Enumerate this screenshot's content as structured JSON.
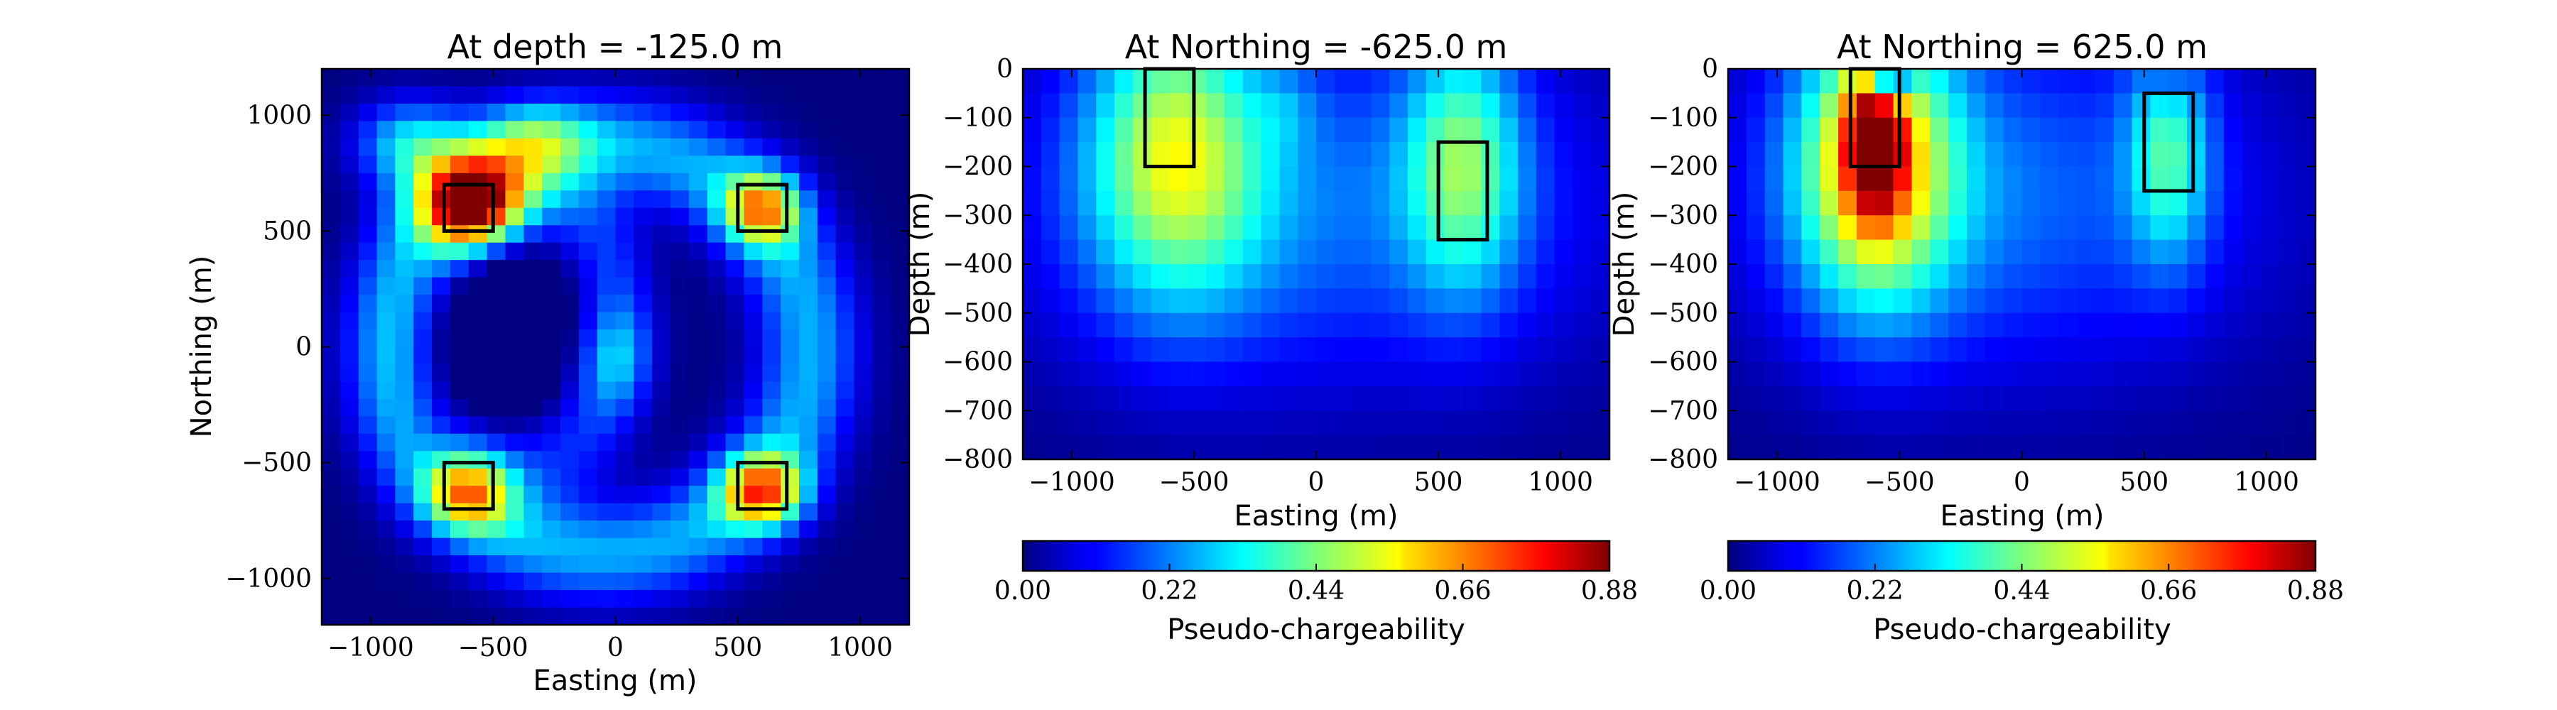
{
  "chart_data": [
    {
      "type": "heatmap",
      "title": "At depth = -125.0 m",
      "xlabel": "Easting (m)",
      "ylabel": "Northing (m)",
      "xlim": [
        -1200,
        1200
      ],
      "ylim": [
        -1200,
        1200
      ],
      "xticks": [
        {
          "value": -1000,
          "label": "−1000"
        },
        {
          "value": -500,
          "label": "−500"
        },
        {
          "value": 0,
          "label": "0"
        },
        {
          "value": 500,
          "label": "500"
        },
        {
          "value": 1000,
          "label": "1000"
        }
      ],
      "yticks": [
        {
          "value": 1000,
          "label": "1000"
        },
        {
          "value": 500,
          "label": "500"
        },
        {
          "value": 0,
          "label": "0"
        },
        {
          "value": -500,
          "label": "−500"
        },
        {
          "value": -1000,
          "label": "−1000"
        }
      ],
      "nx": 32,
      "ny": 32,
      "vmin": 0,
      "vmax": 0.88,
      "blobs": [
        {
          "type": "gauss",
          "x": -600,
          "y": 625,
          "sx": 150,
          "sy": 140,
          "a": 0.74
        },
        {
          "type": "gauss",
          "x": -830,
          "y": 880,
          "sx": 160,
          "sy": 130,
          "a": 0.3
        },
        {
          "type": "gauss",
          "x": -350,
          "y": 900,
          "sx": 160,
          "sy": 110,
          "a": 0.22
        },
        {
          "type": "gauss",
          "x": 600,
          "y": 600,
          "sx": 110,
          "sy": 110,
          "a": 0.46
        },
        {
          "type": "gauss",
          "x": -600,
          "y": -625,
          "sx": 130,
          "sy": 120,
          "a": 0.48
        },
        {
          "type": "gauss",
          "x": 600,
          "y": -625,
          "sx": 120,
          "sy": 110,
          "a": 0.52
        },
        {
          "type": "ring",
          "cx": -60,
          "cy": -10,
          "rx": 850,
          "ry": 880,
          "w": 150,
          "a": 0.26
        },
        {
          "type": "ring",
          "cx": -330,
          "cy": 100,
          "rx": 340,
          "ry": 560,
          "w": 110,
          "a": 0.16
        },
        {
          "type": "gauss",
          "x": 0,
          "y": -50,
          "sx": 100,
          "sy": 150,
          "a": 0.15
        },
        {
          "type": "gauss",
          "x": -900,
          "y": 50,
          "sx": 90,
          "sy": 400,
          "a": 0.08
        },
        {
          "type": "gauss",
          "x": -580,
          "y": 50,
          "sx": 200,
          "sy": 380,
          "a": -0.3
        }
      ],
      "boxes": [
        {
          "x0": -700,
          "x1": -500,
          "y0": 500,
          "y1": 700
        },
        {
          "x0": 500,
          "x1": 700,
          "y0": 500,
          "y1": 700
        },
        {
          "x0": -700,
          "x1": -500,
          "y0": -700,
          "y1": -500
        },
        {
          "x0": 500,
          "x1": 700,
          "y0": -700,
          "y1": -500
        }
      ]
    },
    {
      "type": "heatmap",
      "title": "At Northing = -625.0 m",
      "xlabel": "Easting (m)",
      "ylabel": "Depth (m)",
      "xlim": [
        -1200,
        1200
      ],
      "ylim": [
        -800,
        0
      ],
      "xticks": [
        {
          "value": -1000,
          "label": "−1000"
        },
        {
          "value": -500,
          "label": "−500"
        },
        {
          "value": 0,
          "label": "0"
        },
        {
          "value": 500,
          "label": "500"
        },
        {
          "value": 1000,
          "label": "1000"
        }
      ],
      "yticks": [
        {
          "value": 0,
          "label": "0"
        },
        {
          "value": -100,
          "label": "−100"
        },
        {
          "value": -200,
          "label": "−200"
        },
        {
          "value": -300,
          "label": "−300"
        },
        {
          "value": -400,
          "label": "−400"
        },
        {
          "value": -500,
          "label": "−500"
        },
        {
          "value": -600,
          "label": "−600"
        },
        {
          "value": -700,
          "label": "−700"
        },
        {
          "value": -800,
          "label": "−800"
        }
      ],
      "nx": 32,
      "ny": 16,
      "vmin": 0,
      "vmax": 0.88,
      "blobs": [
        {
          "type": "gauss",
          "x": -580,
          "y": -170,
          "sx": 260,
          "sy": 220,
          "a": 0.4
        },
        {
          "type": "gauss",
          "x": 600,
          "y": -190,
          "sx": 170,
          "sy": 190,
          "a": 0.32
        },
        {
          "type": "gauss",
          "x": 0,
          "y": -280,
          "sx": 900,
          "sy": 270,
          "a": 0.2
        },
        {
          "type": "gauss",
          "x": -120,
          "y": -80,
          "sx": 90,
          "sy": 60,
          "a": 0.06
        }
      ],
      "boxes": [
        {
          "x0": -700,
          "x1": -500,
          "y0": -200,
          "y1": 0
        },
        {
          "x0": 500,
          "x1": 700,
          "y0": -350,
          "y1": -150
        }
      ],
      "colorbar": {
        "ticks": [
          {
            "value": 0,
            "label": "0.00"
          },
          {
            "value": 0.22,
            "label": "0.22"
          },
          {
            "value": 0.44,
            "label": "0.44"
          },
          {
            "value": 0.66,
            "label": "0.66"
          },
          {
            "value": 0.88,
            "label": "0.88"
          }
        ],
        "label": "Pseudo-chargeability"
      }
    },
    {
      "type": "heatmap",
      "title": "At Northing = 625.0 m",
      "xlabel": "Easting (m)",
      "ylabel": "Depth (m)",
      "xlim": [
        -1200,
        1200
      ],
      "ylim": [
        -800,
        0
      ],
      "xticks": [
        {
          "value": -1000,
          "label": "−1000"
        },
        {
          "value": -500,
          "label": "−500"
        },
        {
          "value": 0,
          "label": "0"
        },
        {
          "value": 500,
          "label": "500"
        },
        {
          "value": 1000,
          "label": "1000"
        }
      ],
      "yticks": [
        {
          "value": 0,
          "label": "0"
        },
        {
          "value": -100,
          "label": "−100"
        },
        {
          "value": -200,
          "label": "−200"
        },
        {
          "value": -300,
          "label": "−300"
        },
        {
          "value": -400,
          "label": "−400"
        },
        {
          "value": -500,
          "label": "−500"
        },
        {
          "value": -600,
          "label": "−600"
        },
        {
          "value": -700,
          "label": "−700"
        },
        {
          "value": -800,
          "label": "−800"
        }
      ],
      "nx": 32,
      "ny": 16,
      "vmin": 0,
      "vmax": 0.88,
      "blobs": [
        {
          "type": "gauss",
          "x": -600,
          "y": -190,
          "sx": 230,
          "sy": 210,
          "a": 0.52
        },
        {
          "type": "gauss",
          "x": -600,
          "y": -150,
          "sx": 80,
          "sy": 100,
          "a": 0.45
        },
        {
          "type": "gauss",
          "x": 600,
          "y": -170,
          "sx": 120,
          "sy": 160,
          "a": 0.28
        },
        {
          "type": "gauss",
          "x": -100,
          "y": -260,
          "sx": 800,
          "sy": 270,
          "a": 0.2
        },
        {
          "type": "gauss",
          "x": -540,
          "y": -10,
          "sx": 60,
          "sy": 40,
          "a": -0.4
        },
        {
          "type": "gauss",
          "x": 600,
          "y": -10,
          "sx": 60,
          "sy": 40,
          "a": -0.08
        }
      ],
      "boxes": [
        {
          "x0": -700,
          "x1": -500,
          "y0": -200,
          "y1": 0
        },
        {
          "x0": 500,
          "x1": 700,
          "y0": -250,
          "y1": -50
        }
      ],
      "colorbar": {
        "ticks": [
          {
            "value": 0,
            "label": "0.00"
          },
          {
            "value": 0.22,
            "label": "0.22"
          },
          {
            "value": 0.44,
            "label": "0.44"
          },
          {
            "value": 0.66,
            "label": "0.66"
          },
          {
            "value": 0.88,
            "label": "0.88"
          }
        ],
        "label": "Pseudo-chargeability"
      }
    }
  ]
}
